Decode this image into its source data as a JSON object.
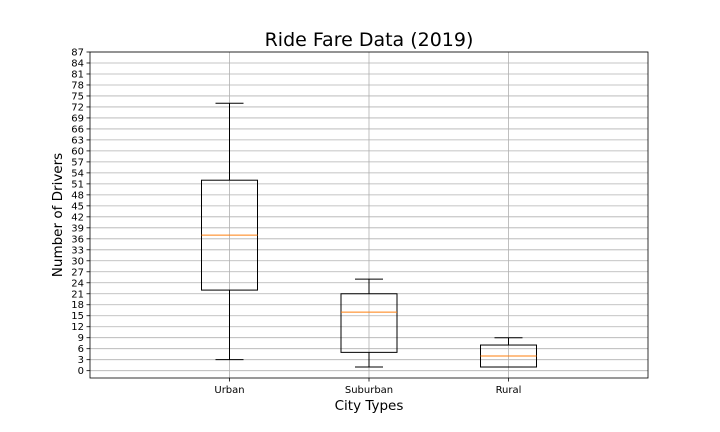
{
  "chart_data": {
    "type": "box",
    "title": "Ride Fare Data (2019)",
    "xlabel": "City Types",
    "ylabel": "Number of Drivers",
    "ylim": [
      -2,
      87
    ],
    "yticks": [
      0,
      3,
      6,
      9,
      12,
      15,
      18,
      21,
      24,
      27,
      30,
      33,
      36,
      39,
      42,
      45,
      48,
      51,
      54,
      57,
      60,
      63,
      66,
      69,
      72,
      75,
      78,
      81,
      84,
      87
    ],
    "grid": true,
    "categories": [
      "Urban",
      "Suburban",
      "Rural"
    ],
    "series": [
      {
        "category": "Urban",
        "whisker_low": 3,
        "q1": 22,
        "median": 37,
        "q3": 52,
        "whisker_high": 73
      },
      {
        "category": "Suburban",
        "whisker_low": 1,
        "q1": 5,
        "median": 16,
        "q3": 21,
        "whisker_high": 25
      },
      {
        "category": "Rural",
        "whisker_low": 1,
        "q1": 1,
        "median": 4,
        "q3": 7,
        "whisker_high": 9
      }
    ],
    "colors": {
      "median": "#ff7f0e",
      "box": "#000000",
      "grid": "#b0b0b0"
    }
  }
}
